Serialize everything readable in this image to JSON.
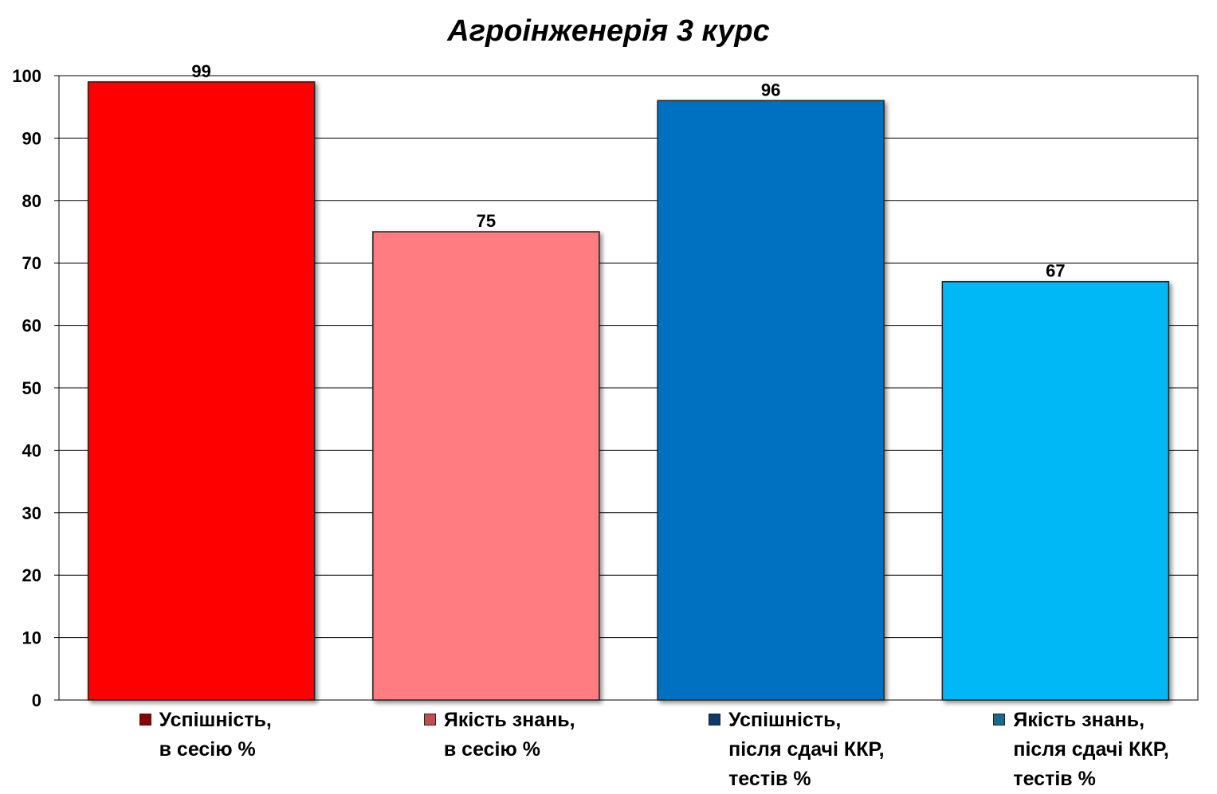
{
  "chart_data": {
    "type": "bar",
    "title": "Агроінженерія 3 курс",
    "ylim": [
      0,
      100
    ],
    "yticks": [
      0,
      10,
      20,
      30,
      40,
      50,
      60,
      70,
      80,
      90,
      100
    ],
    "grid": true,
    "legend_placement": "bottom",
    "categories": [
      "Успішність,\nв сесію %",
      "Якість знань,\nв сесію %",
      "Успішність,\nпісля сдачі ККР,\nтестів %",
      "Якість знань,\nпісля сдачі ККР,\nтестів %"
    ],
    "values": [
      99,
      75,
      96,
      67
    ],
    "colors": [
      "#ff0000",
      "#ff7c80",
      "#0070c0",
      "#00b8f5"
    ],
    "legend_swatch_colors": [
      "#8b0000",
      "#c05050",
      "#0a3a6e",
      "#1a6a8a"
    ]
  }
}
